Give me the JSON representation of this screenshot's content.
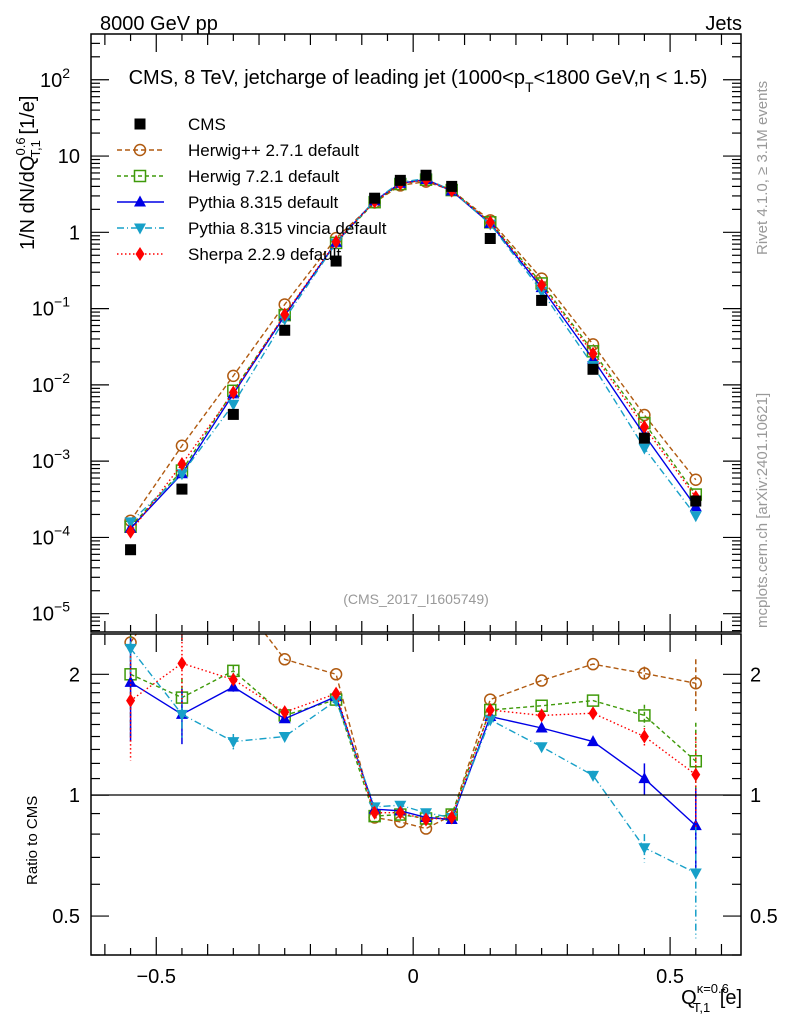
{
  "chart_data": {
    "type": "line",
    "header_left": "8000 GeV pp",
    "header_right": "Jets",
    "title_parts": [
      "CMS, 8 TeV, jetcharge of leading jet (1000<p",
      "T",
      "<1800 GeV,η < 1.5)"
    ],
    "ylabel_parts": [
      "1/N dN/dQ",
      "0.6",
      "T,1",
      " [1/e]"
    ],
    "xlabel_parts": [
      "Q",
      "κ=0.6",
      "T,1",
      " [e]"
    ],
    "ratio_ylabel": "Ratio to CMS",
    "analysis_label": "(CMS_2017_I1605749)",
    "side_label_top": "Rivet 4.1.0, ≥ 3.1M events",
    "side_label_bottom": "mcplots.cern.ch [arXiv:2401.10621]",
    "xlim": [
      -0.627,
      0.638
    ],
    "ylim_log10": [
      -5.24,
      2.6
    ],
    "ratio_ylim": [
      0.4,
      2.52
    ],
    "x_ticks": [
      -0.5,
      0,
      0.5
    ],
    "x_tick_labels": [
      "−0.5",
      "0",
      "0.5"
    ],
    "y_tick_labels": [
      {
        "base": "10",
        "exp": "2",
        "v": 2
      },
      {
        "base": "10",
        "exp": "",
        "v": 1
      },
      {
        "base": "1",
        "exp": "",
        "v": 0
      },
      {
        "base": "10",
        "exp": "−1",
        "v": -1
      },
      {
        "base": "10",
        "exp": "−2",
        "v": -2
      },
      {
        "base": "10",
        "exp": "−3",
        "v": -3
      },
      {
        "base": "10",
        "exp": "−4",
        "v": -4
      },
      {
        "base": "10",
        "exp": "−5",
        "v": -5
      }
    ],
    "ratio_ticks": [
      0.5,
      1,
      2
    ],
    "ratio_tick_labels": [
      "0.5",
      "1",
      "2"
    ],
    "x": [
      -0.55,
      -0.45,
      -0.35,
      -0.25,
      -0.15,
      -0.075,
      -0.025,
      0.025,
      0.075,
      0.15,
      0.25,
      0.35,
      0.45,
      0.55
    ],
    "data": {
      "name": "CMS",
      "values": [
        6.9e-05,
        0.00043,
        0.0041,
        0.052,
        0.42,
        2.8,
        4.8,
        5.6,
        4.0,
        0.83,
        0.128,
        0.016,
        0.002,
        0.0003
      ]
    },
    "series": [
      {
        "name": "Herwig++ 2.7.1 default",
        "color": "#b05a10",
        "marker": "circle",
        "dash": "5,3",
        "ratio": [
          2.4,
          3.7,
          3.2,
          2.18,
          2.0,
          0.88,
          0.858,
          0.826,
          0.89,
          1.73,
          1.93,
          2.12,
          2.01,
          1.9
        ],
        "ratio_err": [
          0,
          0,
          0,
          0,
          0,
          0,
          0,
          0,
          0,
          0,
          0,
          0,
          0.08,
          0.28
        ]
      },
      {
        "name": "Herwig 7.2.1 default",
        "color": "#3f9a0a",
        "marker": "square",
        "dash": "4,3",
        "ratio": [
          2.0,
          1.75,
          2.04,
          1.58,
          1.73,
          0.887,
          0.895,
          0.875,
          0.895,
          1.63,
          1.67,
          1.72,
          1.58,
          1.215
        ],
        "ratio_err": [
          0.6,
          0.2,
          0.06,
          0,
          0,
          0,
          0,
          0,
          0,
          0,
          0,
          0,
          0.1,
          0.3
        ]
      },
      {
        "name": "Pythia 8.315 default",
        "color": "#0000e6",
        "marker": "triangle-up",
        "dash": "",
        "ratio": [
          1.91,
          1.59,
          1.86,
          1.55,
          1.76,
          0.923,
          0.914,
          0.88,
          0.87,
          1.57,
          1.47,
          1.36,
          1.1,
          0.84
        ],
        "ratio_err": [
          0.55,
          0.25,
          0.05,
          0,
          0,
          0,
          0,
          0,
          0,
          0,
          0,
          0.03,
          0.1,
          0.2
        ]
      },
      {
        "name": "Pythia 8.315 vincia default",
        "color": "#17a0c8",
        "marker": "triangle-down",
        "dash": "7,3,1,3",
        "ratio": [
          2.32,
          1.59,
          1.36,
          1.4,
          1.72,
          0.935,
          0.944,
          0.904,
          0.88,
          1.54,
          1.32,
          1.12,
          0.74,
          0.64
        ],
        "ratio_err": [
          0.3,
          0.2,
          0.06,
          0,
          0,
          0,
          0,
          0,
          0,
          0,
          0,
          0.03,
          0.06,
          0.2
        ]
      },
      {
        "name": "Sherpa 2.2.9 default",
        "color": "#ff0000",
        "marker": "diamond",
        "dash": "1.5,2.5",
        "ratio": [
          1.72,
          2.13,
          1.94,
          1.61,
          1.79,
          0.904,
          0.905,
          0.87,
          0.88,
          1.63,
          1.58,
          1.6,
          1.4,
          1.125
        ],
        "ratio_err": [
          0.5,
          0.45,
          0,
          0,
          0,
          0,
          0,
          0,
          0,
          0,
          0,
          0,
          0.07,
          0.3
        ]
      }
    ]
  }
}
